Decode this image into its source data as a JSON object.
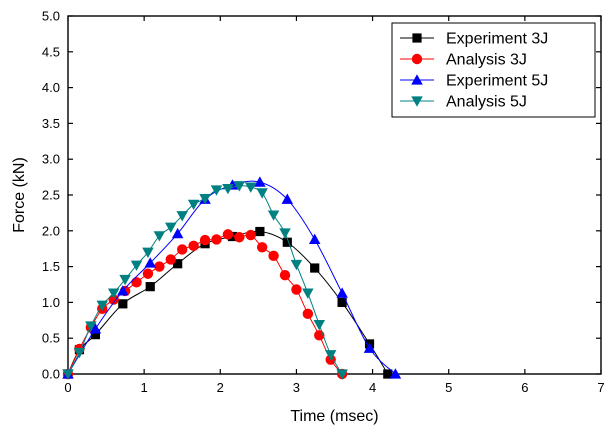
{
  "chart_data": {
    "type": "line",
    "xlabel": "Time (msec)",
    "ylabel": "Force (kN)",
    "xlim": [
      0,
      7
    ],
    "ylim": [
      0,
      5
    ],
    "xticks": [
      0,
      1,
      2,
      3,
      4,
      5,
      6,
      7
    ],
    "yticks": [
      0.0,
      0.5,
      1.0,
      1.5,
      2.0,
      2.5,
      3.0,
      3.5,
      4.0,
      4.5,
      5.0
    ],
    "xtick_labels": [
      "0",
      "1",
      "2",
      "3",
      "4",
      "5",
      "6",
      "7"
    ],
    "ytick_labels": [
      "0.0",
      "0.5",
      "1.0",
      "1.5",
      "2.0",
      "2.5",
      "3.0",
      "3.5",
      "4.0",
      "4.5",
      "5.0"
    ],
    "grid": false,
    "legend_position": "top-right",
    "series": [
      {
        "name": "Experiment 3J",
        "marker": "square",
        "color": "#000000",
        "x": [
          0.0,
          0.15,
          0.36,
          0.72,
          1.08,
          1.44,
          1.8,
          2.16,
          2.52,
          2.88,
          3.24,
          3.6,
          3.96,
          4.2
        ],
        "y": [
          0.0,
          0.34,
          0.55,
          0.98,
          1.22,
          1.54,
          1.82,
          1.92,
          1.99,
          1.84,
          1.48,
          1.0,
          0.42,
          0.0
        ]
      },
      {
        "name": "Analysis 3J",
        "marker": "circle",
        "color": "#ff0000",
        "x": [
          0.0,
          0.15,
          0.3,
          0.45,
          0.6,
          0.75,
          0.9,
          1.05,
          1.2,
          1.35,
          1.5,
          1.65,
          1.8,
          1.95,
          2.1,
          2.25,
          2.4,
          2.55,
          2.7,
          2.85,
          3.0,
          3.15,
          3.3,
          3.45,
          3.6
        ],
        "y": [
          0.0,
          0.35,
          0.65,
          0.91,
          1.04,
          1.16,
          1.28,
          1.4,
          1.5,
          1.6,
          1.74,
          1.79,
          1.87,
          1.88,
          1.95,
          1.91,
          1.94,
          1.77,
          1.65,
          1.38,
          1.18,
          0.84,
          0.54,
          0.2,
          0.0
        ]
      },
      {
        "name": "Experiment 5J",
        "marker": "triangle-up",
        "color": "#0000ff",
        "x": [
          0.0,
          0.36,
          0.72,
          1.08,
          1.44,
          1.8,
          2.16,
          2.52,
          2.88,
          3.24,
          3.6,
          3.96,
          4.3
        ],
        "y": [
          0.0,
          0.63,
          1.16,
          1.55,
          1.96,
          2.44,
          2.64,
          2.68,
          2.44,
          1.88,
          1.13,
          0.36,
          0.0
        ]
      },
      {
        "name": "Analysis 5J",
        "marker": "triangle-down",
        "color": "#008080",
        "x": [
          0.0,
          0.15,
          0.3,
          0.45,
          0.6,
          0.75,
          0.9,
          1.05,
          1.2,
          1.35,
          1.5,
          1.65,
          1.8,
          1.95,
          2.1,
          2.25,
          2.4,
          2.55,
          2.7,
          2.85,
          3.0,
          3.15,
          3.3,
          3.45,
          3.6
        ],
        "y": [
          0.0,
          0.3,
          0.67,
          0.96,
          1.13,
          1.32,
          1.52,
          1.7,
          1.93,
          2.05,
          2.21,
          2.37,
          2.45,
          2.57,
          2.59,
          2.63,
          2.61,
          2.53,
          2.22,
          1.97,
          1.53,
          1.13,
          0.69,
          0.27,
          0.0
        ]
      }
    ]
  }
}
